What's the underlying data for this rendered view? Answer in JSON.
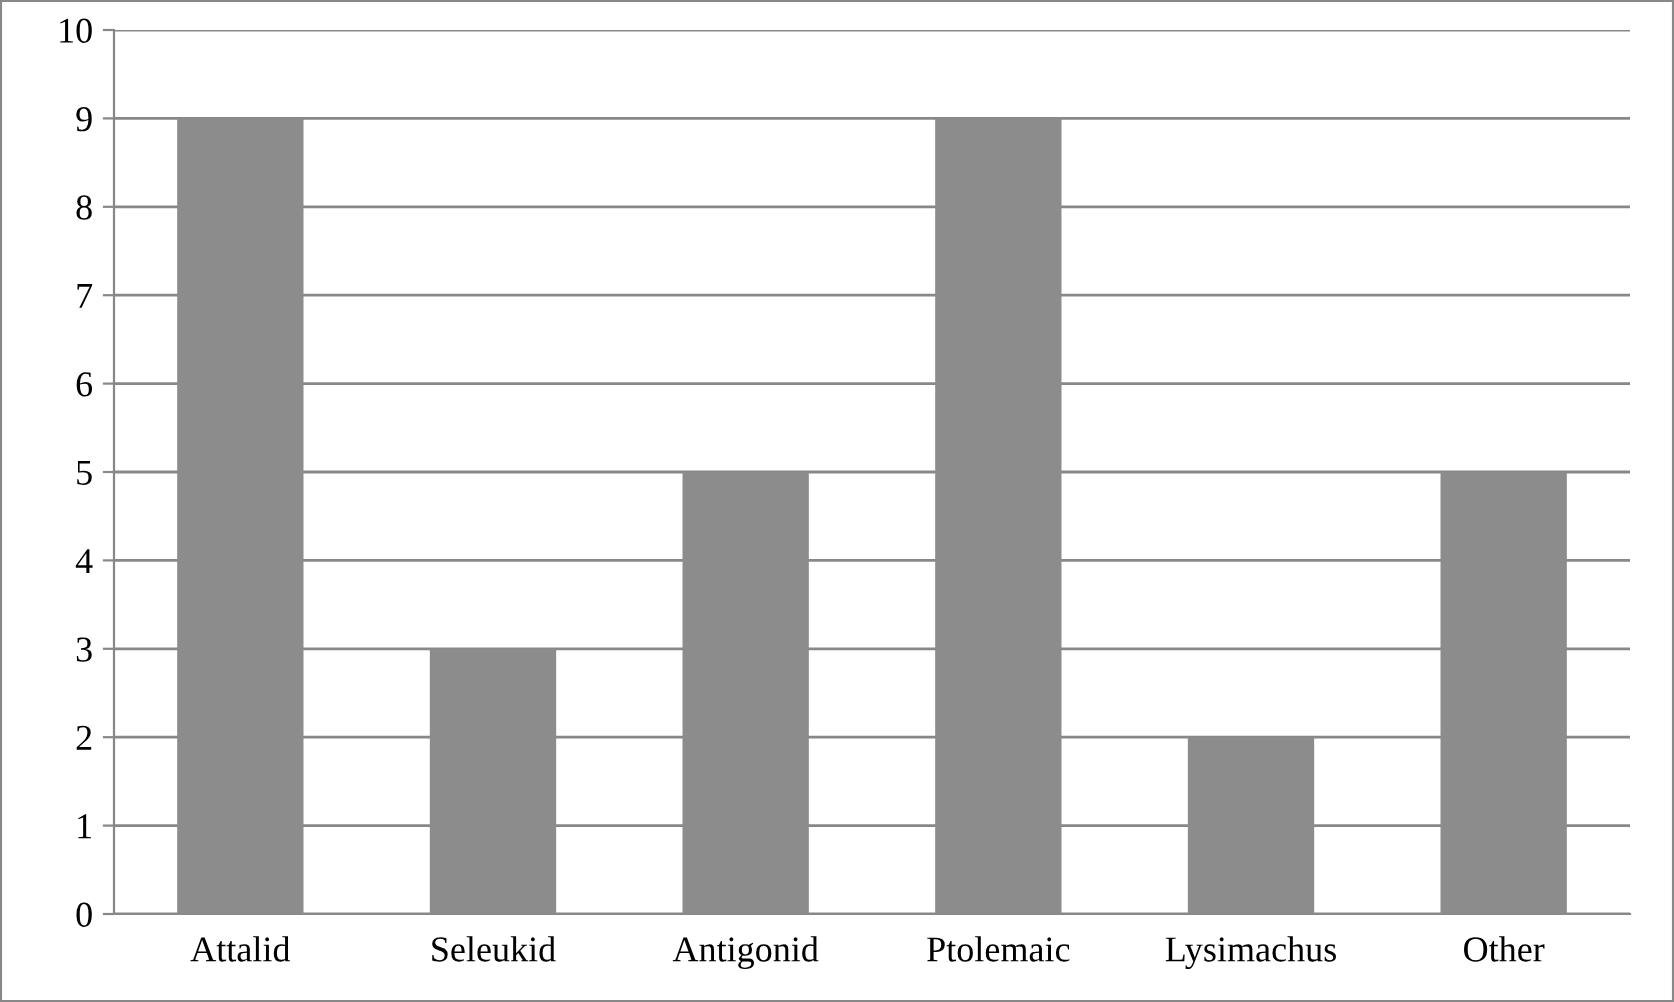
{
  "chart_data": {
    "type": "bar",
    "categories": [
      "Attalid",
      "Seleukid",
      "Antigonid",
      "Ptolemaic",
      "Lysimachus",
      "Other"
    ],
    "values": [
      9,
      3,
      5,
      9,
      2,
      5
    ],
    "color": "#8c8c8c",
    "ylim": [
      0,
      10
    ],
    "yticks": [
      0,
      1,
      2,
      3,
      4,
      5,
      6,
      7,
      8,
      9,
      10
    ],
    "grid": "y",
    "legend": false
  }
}
